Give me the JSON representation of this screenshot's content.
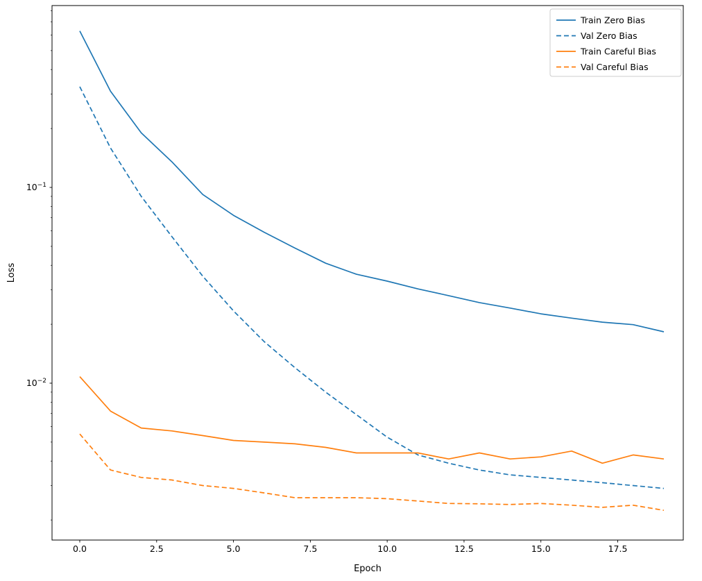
{
  "chart_data": {
    "type": "line",
    "title": "",
    "xlabel": "Epoch",
    "ylabel": "Loss",
    "yscale": "log",
    "grid": false,
    "legend_position": "upper right",
    "x": [
      0,
      1,
      2,
      3,
      4,
      5,
      6,
      7,
      8,
      9,
      10,
      11,
      12,
      13,
      14,
      15,
      16,
      17,
      18,
      19
    ],
    "xticks": {
      "values": [
        0,
        2.5,
        5,
        7.5,
        10,
        12.5,
        15,
        17.5
      ],
      "labels": [
        "0.0",
        "2.5",
        "5.0",
        "7.5",
        "10.0",
        "12.5",
        "15.0",
        "17.5"
      ]
    },
    "yticks": [
      {
        "value": 0.1,
        "base": "10",
        "exp": "−1"
      },
      {
        "value": 0.01,
        "base": "10",
        "exp": "−2"
      }
    ],
    "ylim": [
      0.0016,
      0.85
    ],
    "xlim": [
      -0.9,
      19.6
    ],
    "series": [
      {
        "name": "Train Zero Bias",
        "color": "#1f77b4",
        "style": "solid",
        "values": [
          0.63,
          0.31,
          0.19,
          0.135,
          0.092,
          0.072,
          0.059,
          0.049,
          0.041,
          0.036,
          0.0332,
          0.0303,
          0.028,
          0.0258,
          0.0242,
          0.0226,
          0.0215,
          0.0205,
          0.0199,
          0.0183
        ]
      },
      {
        "name": "Val Zero Bias",
        "color": "#1f77b4",
        "style": "dashed",
        "values": [
          0.327,
          0.159,
          0.09,
          0.056,
          0.0352,
          0.0234,
          0.0163,
          0.012,
          0.009,
          0.0069,
          0.0053,
          0.0043,
          0.0039,
          0.0036,
          0.0034,
          0.0033,
          0.0032,
          0.0031,
          0.003,
          0.0029
        ]
      },
      {
        "name": "Train Careful Bias",
        "color": "#ff7f0e",
        "style": "solid",
        "values": [
          0.0108,
          0.0072,
          0.0059,
          0.0057,
          0.0054,
          0.0051,
          0.005,
          0.0049,
          0.0047,
          0.0044,
          0.0044,
          0.0044,
          0.0041,
          0.0044,
          0.0041,
          0.0042,
          0.0045,
          0.0039,
          0.0043,
          0.0041
        ]
      },
      {
        "name": "Val Careful Bias",
        "color": "#ff7f0e",
        "style": "dashed",
        "values": [
          0.0055,
          0.0036,
          0.0033,
          0.0032,
          0.003,
          0.0029,
          0.00275,
          0.0026,
          0.0026,
          0.0026,
          0.00257,
          0.0025,
          0.00243,
          0.00242,
          0.0024,
          0.00243,
          0.00238,
          0.00232,
          0.00238,
          0.00224
        ]
      }
    ]
  }
}
